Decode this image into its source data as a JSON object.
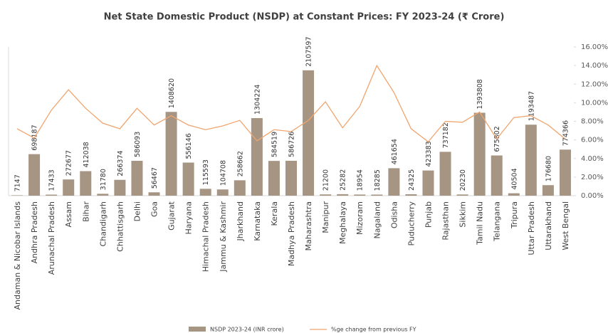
{
  "chart_data": {
    "type": "bar_line",
    "title": "Net State Domestic Product (NSDP) at Constant Prices: FY 2023-24 (₹ Crore)",
    "categories": [
      "Andaman & Nicobar Islands",
      "Andhra Pradesh",
      "Arunachal Pradesh",
      "Assam",
      "Bihar",
      "Chandigarh",
      "Chhattisgarh",
      "Delhi",
      "Goa",
      "Gujarat",
      "Haryana",
      "Himachal Pradesh",
      "Jammu & Kashmir",
      "Jharkhand",
      "Karnataka",
      "Kerala",
      "Madhya Pradesh",
      "Maharashtra",
      "Manipur",
      "Meghalaya",
      "Mizoram",
      "Nagaland",
      "Odisha",
      "Puducherry",
      "Punjab",
      "Rajasthan",
      "Sikkim",
      "Tamil Nadu",
      "Telangana",
      "Tripura",
      "Uttar Pradesh",
      "Uttarakhand",
      "West Bengal"
    ],
    "series": [
      {
        "name": "NSDP 2023-24 (INR crore)",
        "type": "bar",
        "color": "#a69583",
        "values": [
          7147,
          698187,
          17433,
          272677,
          412038,
          31780,
          266374,
          586093,
          56467,
          1408620,
          556146,
          115593,
          104708,
          258662,
          1304224,
          584519,
          586726,
          2107597,
          21200,
          25282,
          18954,
          18285,
          461654,
          24325,
          423383,
          737182,
          20230,
          1393808,
          675802,
          40504,
          1193487,
          176680,
          774366
        ]
      },
      {
        "name": "%ge change from previous FY",
        "type": "line",
        "axis": "y2",
        "color": "#f0a46e",
        "values": [
          7.2,
          6.2,
          9.2,
          11.4,
          9.4,
          7.8,
          7.2,
          9.4,
          7.6,
          8.6,
          7.6,
          7.1,
          7.5,
          8.1,
          5.9,
          7.1,
          6.9,
          8.1,
          10.1,
          7.3,
          9.6,
          14.0,
          11.1,
          7.2,
          5.8,
          8.0,
          7.9,
          9.0,
          6.1,
          8.4,
          8.6,
          7.6,
          6.1
        ]
      }
    ],
    "ylim": [
      0,
      2500000
    ],
    "y2lim": [
      0,
      16
    ],
    "y2ticks": [
      {
        "value": 0,
        "label": "0.00%"
      },
      {
        "value": 2,
        "label": "2.00%"
      },
      {
        "value": 4,
        "label": "4.00%"
      },
      {
        "value": 6,
        "label": "6.00%"
      },
      {
        "value": 8,
        "label": "8.00%"
      },
      {
        "value": 10,
        "label": "10.00%"
      },
      {
        "value": 12,
        "label": "12.00%"
      },
      {
        "value": 14,
        "label": "14.00%"
      },
      {
        "value": 16,
        "label": "16.00%"
      }
    ],
    "legend": "bottom"
  }
}
